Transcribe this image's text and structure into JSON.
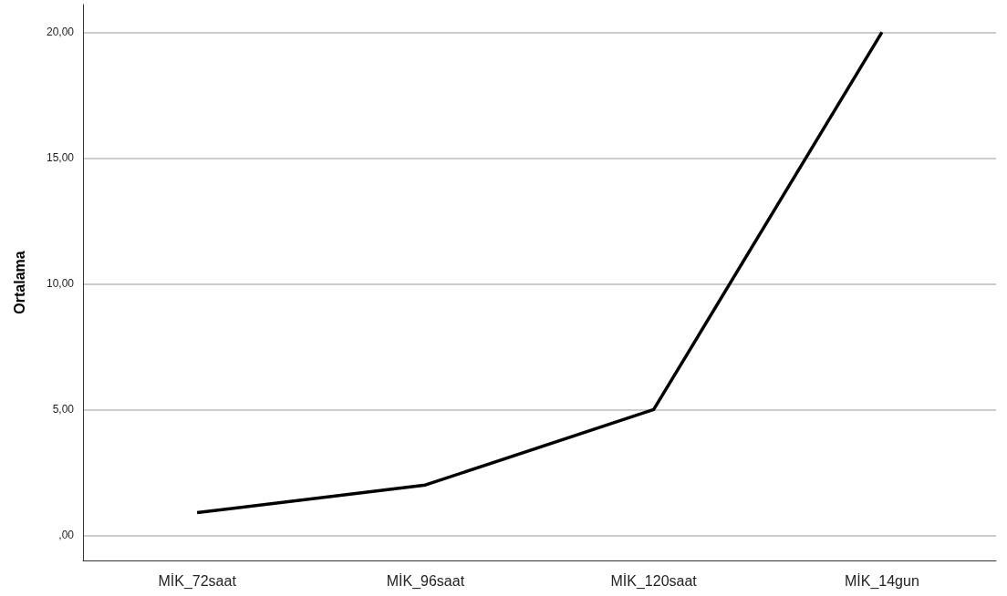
{
  "chart_data": {
    "type": "line",
    "ylabel": "Ortalama",
    "categories": [
      "MİK_72saat",
      "MİK_96saat",
      "MİK_120saat",
      "MİK_14gun"
    ],
    "series": [
      {
        "color": "#000000",
        "values": [
          0.9,
          2.0,
          5.0,
          20.0
        ]
      }
    ],
    "ylim": [
      -1,
      21.1
    ],
    "yticks": [
      {
        "value": 0,
        "label": ",00"
      },
      {
        "value": 5,
        "label": "5,00"
      },
      {
        "value": 10,
        "label": "10,00"
      },
      {
        "value": 15,
        "label": "15,00"
      },
      {
        "value": 20,
        "label": "20,00"
      }
    ],
    "grid": "y",
    "marker": "none",
    "line_style": "solid"
  }
}
